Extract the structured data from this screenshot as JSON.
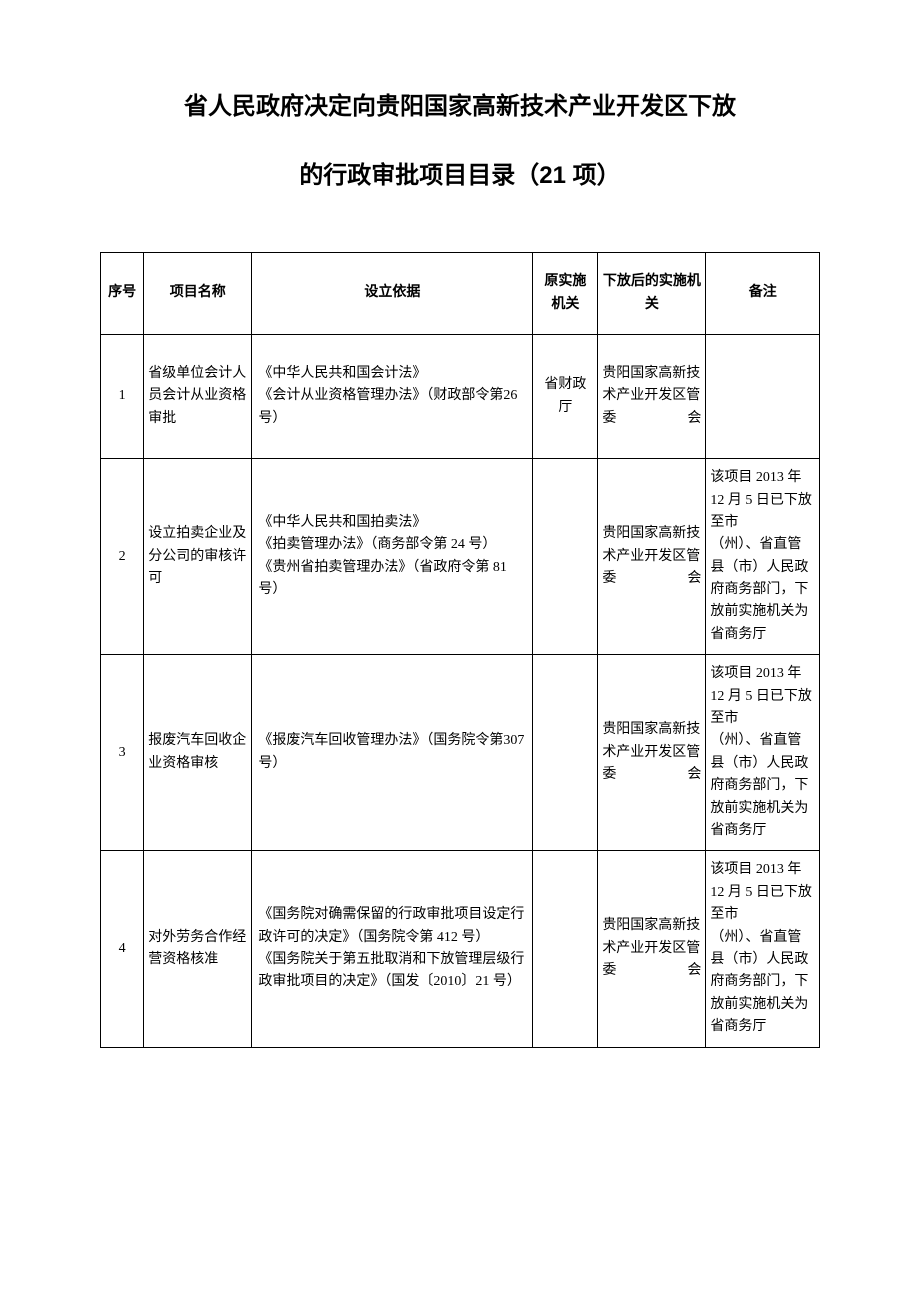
{
  "title": "省人民政府决定向贵阳国家高新技术产业开发区下放",
  "subtitle": "的行政审批项目目录（21 项）",
  "table": {
    "columns": [
      "序号",
      "项目名称",
      "设立依据",
      "原实施机关",
      "下放后的实施机关",
      "备注"
    ],
    "rows": [
      {
        "seq": "1",
        "name": "省级单位会计人员会计从业资格审批",
        "basis": "《中华人民共和国会计法》\n《会计从业资格管理办法》（财政部令第26 号）",
        "org": "省财政厅",
        "after": "贵阳国家高新技术产业开发区管委会",
        "remark": ""
      },
      {
        "seq": "2",
        "name": "设立拍卖企业及分公司的审核许可",
        "basis": "《中华人民共和国拍卖法》\n《拍卖管理办法》（商务部令第 24 号）\n《贵州省拍卖管理办法》（省政府令第 81号）",
        "org": "",
        "after": "贵阳国家高新技术产业开发区管委会",
        "remark": "该项目 2013 年12 月 5 日已下放至市\n（州）、省直管县（市）人民政府商务部门，下放前实施机关为省商务厅"
      },
      {
        "seq": "3",
        "name": "报废汽车回收企业资格审核",
        "basis": "《报废汽车回收管理办法》（国务院令第307 号）",
        "org": "",
        "after": "贵阳国家高新技术产业开发区管委会",
        "remark": "该项目 2013 年12 月 5 日已下放至市\n（州）、省直管县（市）人民政府商务部门，下放前实施机关为省商务厅"
      },
      {
        "seq": "4",
        "name": "对外劳务合作经营资格核准",
        "basis": "《国务院对确需保留的行政审批项目设定行政许可的决定》（国务院令第 412 号）\n《国务院关于第五批取消和下放管理层级行政审批项目的决定》（国发〔2010〕21 号）",
        "org": "",
        "after": "贵阳国家高新技术产业开发区管委会",
        "remark": "该项目 2013 年12 月 5 日已下放至市\n（州）、省直管县（市）人民政府商务部门，下放前实施机关为省商务厅"
      }
    ]
  }
}
